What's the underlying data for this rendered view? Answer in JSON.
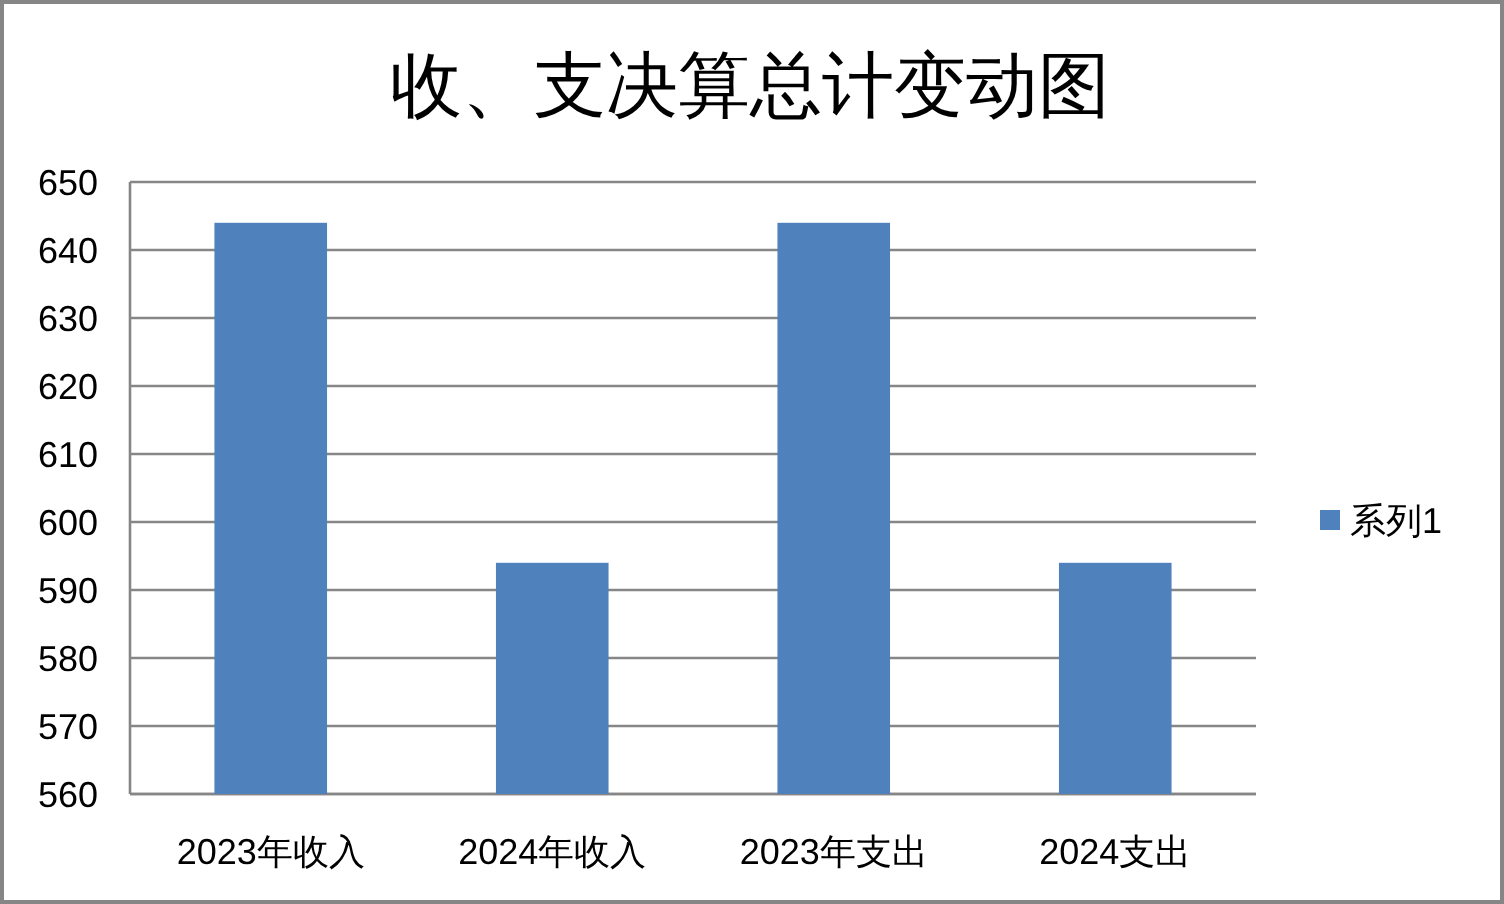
{
  "chart_data": {
    "type": "bar",
    "title": "收、支决算总计变动图",
    "categories": [
      "2023年收入",
      "2024年收入",
      "2023年支出",
      "2024支出"
    ],
    "series": [
      {
        "name": "系列1",
        "color": "#4f81bd",
        "values": [
          644,
          594,
          644,
          594
        ]
      }
    ],
    "ylim": [
      560,
      650
    ],
    "yticks": [
      560,
      570,
      580,
      590,
      600,
      610,
      620,
      630,
      640,
      650
    ],
    "grid": "y",
    "legend": "right"
  }
}
